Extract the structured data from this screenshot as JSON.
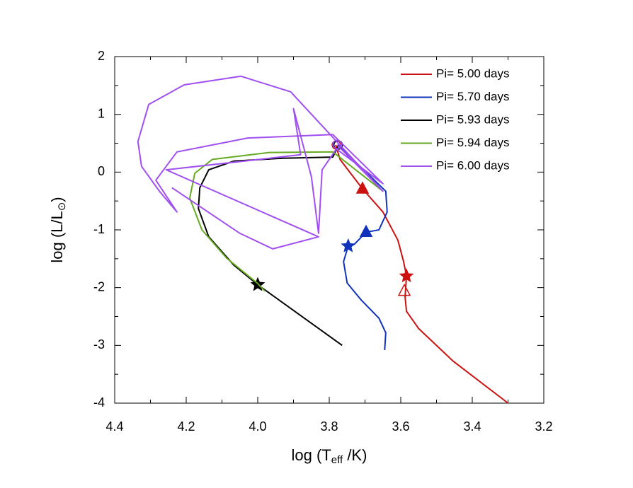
{
  "chart_data": {
    "type": "line",
    "xlabel": [
      "log (T",
      "eff",
      " /K)"
    ],
    "ylabel": [
      "log (L/L",
      "⊙",
      ")"
    ],
    "xlim": [
      4.4,
      3.2
    ],
    "ylim": [
      -4,
      2
    ],
    "xticks": [
      4.4,
      4.2,
      {
        "value": 4,
        "label": "4.0"
      },
      3.8,
      3.6,
      3.4,
      3.2
    ],
    "yticks": [
      2,
      1,
      0,
      -1,
      -2,
      -3,
      -4
    ],
    "xminorticks": [
      4.3,
      4.1,
      3.9,
      3.7,
      3.5,
      3.3
    ],
    "yminorticks": [
      1.5,
      0.5,
      -0.5,
      -1.5,
      -2.5,
      -3.5
    ],
    "legend": "upper right",
    "series": [
      {
        "name": "Pi= 5.00 days",
        "color": "#cc1111",
        "x": [
          3.782,
          3.77,
          3.707,
          3.65,
          3.608,
          3.592,
          3.584,
          3.588,
          3.584,
          3.55,
          3.454,
          3.3
        ],
        "y": [
          0.47,
          0.22,
          -0.29,
          -0.69,
          -1.18,
          -1.55,
          -1.8,
          -2.16,
          -2.41,
          -2.71,
          -3.27,
          -4.0
        ],
        "markers": [
          {
            "shape": "circle",
            "x": 3.78,
            "y": 0.47,
            "filled": false
          },
          {
            "shape": "triangle",
            "x": 3.707,
            "y": -0.29,
            "filled": true
          },
          {
            "shape": "star",
            "x": 3.584,
            "y": -1.8,
            "filled": true
          },
          {
            "shape": "triangle",
            "x": 3.59,
            "y": -2.06,
            "filled": false
          }
        ]
      },
      {
        "name": "Pi= 5.70 days",
        "color": "#1133bb",
        "x": [
          3.776,
          3.642,
          3.638,
          3.661,
          3.697,
          3.73,
          3.747,
          3.76,
          3.75,
          3.71,
          3.661,
          3.642,
          3.645
        ],
        "y": [
          0.47,
          -0.33,
          -0.69,
          -1.0,
          -1.04,
          -1.25,
          -1.28,
          -1.55,
          -1.92,
          -2.22,
          -2.53,
          -2.78,
          -3.08
        ],
        "markers": [
          {
            "shape": "triangle",
            "x": 3.697,
            "y": -1.04,
            "filled": true
          },
          {
            "shape": "star",
            "x": 3.747,
            "y": -1.28,
            "filled": true
          }
        ]
      },
      {
        "name": "Pi= 5.93 days",
        "color": "#000000",
        "x": [
          3.764,
          4.0,
          4.067,
          4.137,
          4.166,
          4.162,
          4.137,
          4.067,
          3.93,
          3.79,
          3.774
        ],
        "y": [
          -3.0,
          -1.95,
          -1.61,
          -1.12,
          -0.63,
          -0.27,
          0.04,
          0.19,
          0.24,
          0.26,
          0.47
        ],
        "markers": [
          {
            "shape": "star",
            "x": 4.0,
            "y": -1.95,
            "filled": true
          },
          {
            "shape": "circle",
            "x": 3.775,
            "y": 0.47,
            "filled": false
          }
        ]
      },
      {
        "name": "Pi= 5.94 days",
        "color": "#66aa22",
        "x": [
          3.98,
          4.0,
          4.087,
          4.156,
          4.19,
          4.176,
          4.127,
          3.968,
          3.79,
          3.65
        ],
        "y": [
          -2.06,
          -1.93,
          -1.49,
          -1.0,
          -0.45,
          -0.02,
          0.22,
          0.34,
          0.35,
          -0.33
        ],
        "markers": []
      },
      {
        "name": "Pi= 6.00 days",
        "color": "#a050f0",
        "x": [
          3.778,
          3.65,
          3.79,
          3.908,
          4.047,
          4.206,
          4.305,
          4.335,
          4.325,
          4.275,
          4.226,
          4.285,
          4.226,
          4.028,
          3.79,
          3.65,
          3.78,
          3.82,
          3.83,
          3.85,
          3.9,
          3.88,
          4.256,
          3.83,
          3.958,
          4.05,
          4.24
        ],
        "y": [
          0.47,
          -0.33,
          0.6,
          1.39,
          1.66,
          1.51,
          1.17,
          0.53,
          0.1,
          -0.33,
          -0.69,
          -0.14,
          0.35,
          0.59,
          0.65,
          -0.2,
          0.4,
          0.04,
          -1.06,
          -0.08,
          1.1,
          0.3,
          0.04,
          -1.12,
          -1.33,
          -1.06,
          -0.27
        ],
        "markers": [
          {
            "shape": "circle",
            "x": 3.778,
            "y": 0.48,
            "filled": false
          }
        ]
      }
    ]
  }
}
